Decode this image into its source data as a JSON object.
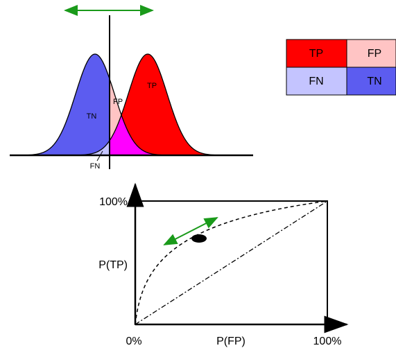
{
  "distributions": {
    "tn": "TN",
    "fp": "FP",
    "tp": "TP",
    "fn": "FN"
  },
  "table": {
    "rows": [
      [
        "TP",
        "FP"
      ],
      [
        "FN",
        "TN"
      ]
    ]
  },
  "roc": {
    "y_top": "100%",
    "y_label": "P(TP)",
    "x_start": "0%",
    "x_label": "P(FP)",
    "x_end": "100%"
  }
}
